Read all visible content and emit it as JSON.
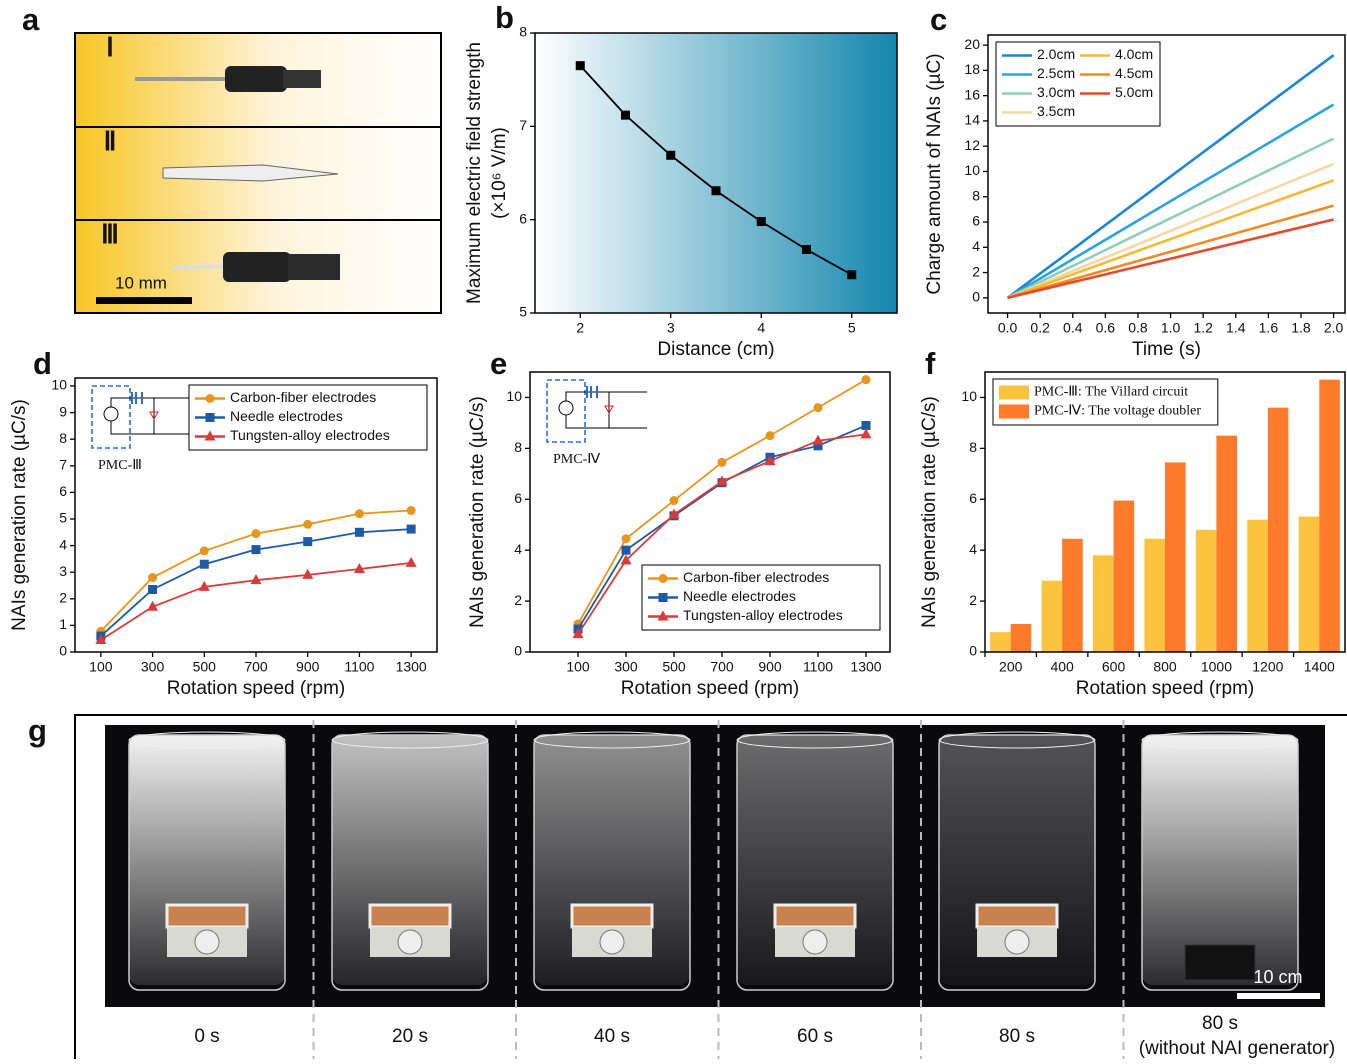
{
  "panel_a": {
    "panel": "a",
    "labels": [
      "Ⅰ",
      "Ⅱ",
      "Ⅲ"
    ],
    "scale_bar": "10 mm"
  },
  "chart_data": [
    {
      "type": "line",
      "panel": "b",
      "xlabel": "Distance (cm)",
      "ylabel": [
        "Maximum electric field strength",
        "(×10⁶ V/m)"
      ],
      "background": [
        "#ffffff",
        "#1487ad"
      ],
      "x": [
        2,
        2.5,
        3,
        3.5,
        4,
        4.5,
        5
      ],
      "xlim": [
        1.5,
        5.5
      ],
      "xticks": [
        2,
        3,
        4,
        5
      ],
      "ylim": [
        5,
        8
      ],
      "yticks": [
        5,
        6,
        7,
        8
      ],
      "series": [
        {
          "color": "#000000",
          "marker": "square",
          "values": [
            7.65,
            7.12,
            6.69,
            6.31,
            5.98,
            5.68,
            5.41
          ]
        }
      ]
    },
    {
      "type": "line",
      "panel": "c",
      "xlabel": "Time (s)",
      "ylabel": "Charge amount of NAIs (µC)",
      "legend": "upper left",
      "legend_columns": 2,
      "x": [
        0,
        2.0
      ],
      "xlim": [
        -0.12,
        2.07
      ],
      "xticks": [
        {
          "value": 0,
          "label": "0.0"
        },
        {
          "value": 0.2,
          "label": "0.2"
        },
        {
          "value": 0.4,
          "label": "0.4"
        },
        {
          "value": 0.6,
          "label": "0.6"
        },
        {
          "value": 0.8,
          "label": "0.8"
        },
        {
          "value": 1,
          "label": "1.0"
        },
        {
          "value": 1.2,
          "label": "1.2"
        },
        {
          "value": 1.4,
          "label": "1.4"
        },
        {
          "value": 1.6,
          "label": "1.6"
        },
        {
          "value": 1.8,
          "label": "1.8"
        },
        {
          "value": 2,
          "label": "2.0"
        }
      ],
      "ylim": [
        -1.2,
        20.8
      ],
      "yticks": [
        0,
        2,
        4,
        6,
        8,
        10,
        12,
        14,
        16,
        18,
        20
      ],
      "series": [
        {
          "name": "2.0cm",
          "color": "#1c86d6",
          "values": [
            0,
            19.2
          ]
        },
        {
          "name": "2.5cm",
          "color": "#2ba3e3",
          "values": [
            0,
            15.3
          ]
        },
        {
          "name": "3.0cm",
          "color": "#8fcfb6",
          "values": [
            0,
            12.6
          ]
        },
        {
          "name": "3.5cm",
          "color": "#f6d8a6",
          "values": [
            0,
            10.6
          ]
        },
        {
          "name": "4.0cm",
          "color": "#f7b934",
          "values": [
            0,
            9.3
          ]
        },
        {
          "name": "4.5cm",
          "color": "#f08a22",
          "values": [
            0,
            7.3
          ]
        },
        {
          "name": "5.0cm",
          "color": "#e54a2c",
          "values": [
            0,
            6.2
          ]
        }
      ]
    },
    {
      "type": "line",
      "panel": "d",
      "xlabel": "Rotation speed (rpm)",
      "ylabel": "NAIs generation rate (µC/s)",
      "legend": "upper right",
      "inset_label": "PMC-Ⅲ",
      "x": [
        100,
        300,
        500,
        700,
        900,
        1100,
        1300
      ],
      "xlim": [
        0,
        1400
      ],
      "xticks": [
        100,
        300,
        500,
        700,
        900,
        1100,
        1300
      ],
      "ylim": [
        0,
        10.3
      ],
      "yticks": [
        0,
        1,
        2,
        3,
        4,
        5,
        6,
        7,
        8,
        9,
        10
      ],
      "series": [
        {
          "name": "Carbon-fiber electrodes",
          "color": "#e8951f",
          "marker": "circle",
          "values": [
            0.78,
            2.8,
            3.8,
            4.45,
            4.8,
            5.2,
            5.32
          ]
        },
        {
          "name": "Needle electrodes",
          "color": "#1f5aa6",
          "marker": "square",
          "values": [
            0.6,
            2.35,
            3.3,
            3.85,
            4.15,
            4.5,
            4.62
          ]
        },
        {
          "name": "Tungsten-alloy electrodes",
          "color": "#d93b3b",
          "marker": "triangle",
          "values": [
            0.45,
            1.7,
            2.45,
            2.7,
            2.9,
            3.12,
            3.35
          ]
        }
      ]
    },
    {
      "type": "line",
      "panel": "e",
      "xlabel": "Rotation speed (rpm)",
      "ylabel": "NAIs generation rate (µC/s)",
      "legend": "lower right",
      "inset_label": "PMC-Ⅳ",
      "x": [
        100,
        300,
        500,
        700,
        900,
        1100,
        1300
      ],
      "xlim": [
        -100,
        1400
      ],
      "xticks": [
        100,
        300,
        500,
        700,
        900,
        1100,
        1300
      ],
      "ylim": [
        0,
        11
      ],
      "yticks": [
        0,
        2,
        4,
        6,
        8,
        10
      ],
      "series": [
        {
          "name": "Carbon-fiber electrodes",
          "color": "#e8951f",
          "marker": "circle",
          "values": [
            1.1,
            4.45,
            5.95,
            7.45,
            8.5,
            9.6,
            10.7
          ]
        },
        {
          "name": "Needle electrodes",
          "color": "#1f5aa6",
          "marker": "square",
          "values": [
            0.9,
            4.0,
            5.35,
            6.65,
            7.65,
            8.1,
            8.9
          ]
        },
        {
          "name": "Tungsten-alloy electrodes",
          "color": "#d93b3b",
          "marker": "triangle",
          "values": [
            0.7,
            3.6,
            5.4,
            6.7,
            7.5,
            8.3,
            8.55
          ]
        }
      ]
    },
    {
      "type": "bar",
      "panel": "f",
      "xlabel": "Rotation speed (rpm)",
      "ylabel": "NAIs generation rate (µC/s)",
      "legend": "upper left",
      "categories": [
        "200",
        "400",
        "600",
        "800",
        "1000",
        "1200",
        "1400"
      ],
      "ylim": [
        0,
        11
      ],
      "yticks": [
        0,
        2,
        4,
        6,
        8,
        10
      ],
      "series": [
        {
          "name": "PMC-Ⅲ: The Villard circuit",
          "color": "#fcc43e",
          "values": [
            0.78,
            2.8,
            3.8,
            4.45,
            4.8,
            5.2,
            5.32
          ]
        },
        {
          "name": "PMC-Ⅳ: The voltage doubler",
          "color": "#ff7a2a",
          "values": [
            1.1,
            4.45,
            5.95,
            7.45,
            8.5,
            9.6,
            10.7
          ]
        }
      ]
    }
  ],
  "panel_g": {
    "panel": "g",
    "labels": [
      "0 s",
      "20 s",
      "40 s",
      "60 s",
      "80 s",
      "80 s"
    ],
    "note": "(without NAI generator)",
    "scale_bar": "10 cm"
  }
}
